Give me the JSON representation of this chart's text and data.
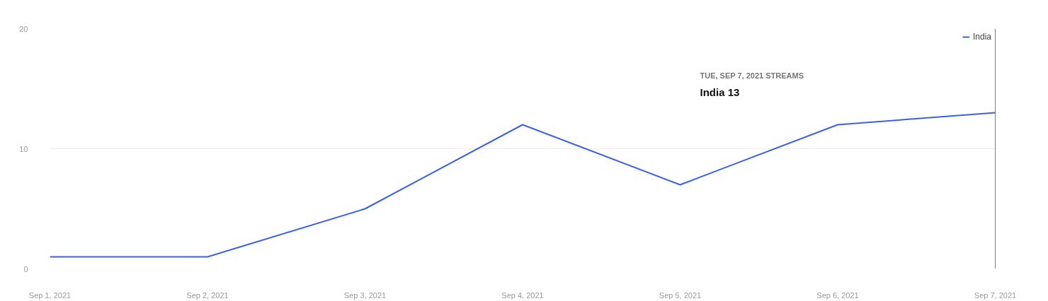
{
  "chart_data": {
    "type": "line",
    "x": [
      "2021-09-01",
      "2021-09-02",
      "2021-09-03",
      "2021-09-04",
      "2021-09-05",
      "2021-09-06",
      "2021-09-07"
    ],
    "series": [
      {
        "name": "India",
        "color": "#3b5ff0",
        "values": [
          1,
          1,
          5,
          12,
          7,
          12,
          13
        ]
      }
    ],
    "xlim": [
      "2021-09-01",
      "2021-09-07"
    ],
    "xticks": [
      {
        "value": "2021-09-01",
        "label": "Sep 1, 2021"
      },
      {
        "value": "2021-09-02",
        "label": "Sep 2, 2021"
      },
      {
        "value": "2021-09-03",
        "label": "Sep 3, 2021"
      },
      {
        "value": "2021-09-04",
        "label": "Sep 4, 2021"
      },
      {
        "value": "2021-09-05",
        "label": "Sep 5, 2021"
      },
      {
        "value": "2021-09-06",
        "label": "Sep 6, 2021"
      },
      {
        "value": "2021-09-07",
        "label": "Sep 7, 2021"
      }
    ],
    "ylim": [
      0,
      20
    ],
    "yticks": [
      0,
      10,
      20
    ],
    "grid": "y",
    "legend": "top right",
    "marker": "none",
    "line_style": "solid",
    "ref_lines": [
      {
        "axis": "x",
        "value": "2021-09-07",
        "label": null,
        "color": "#000000"
      }
    ],
    "annotations": [
      "TUE, SEP 7, 2021  STREAMS",
      "India  13"
    ]
  }
}
